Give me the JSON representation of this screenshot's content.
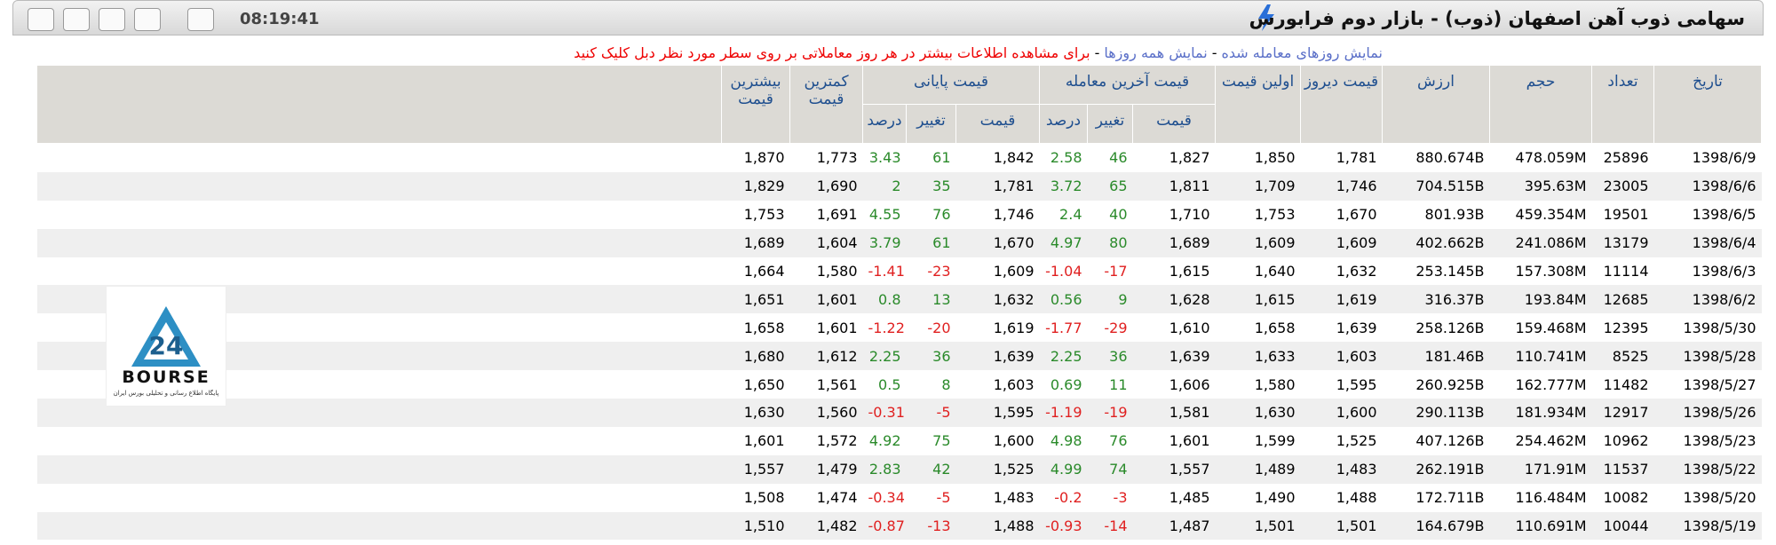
{
  "header": {
    "title": "سهامی ذوب آهن اصفهان (ذوب) - بازار دوم فرابورس",
    "time": "08:19:41"
  },
  "links": {
    "traded_days": "نمایش روزهای معامله شده",
    "separator": "-",
    "all_days": "نمایش همه روزها",
    "note": "برای مشاهده اطلاعات بیشتر در هر روز معاملاتی بر روی سطر مورد نظر دبل کلیک کنید"
  },
  "table": {
    "groups": {
      "last": "قیمت آخرین معامله",
      "close": "قیمت پایانی"
    },
    "headers": [
      "تاریخ",
      "تعداد",
      "حجم",
      "ارزش",
      "قیمت دیروز",
      "اولین قیمت",
      "قیمت",
      "تغییر",
      "درصد",
      "قیمت",
      "تغییر",
      "درصد",
      "کمترین قیمت",
      "بیشترین قیمت"
    ],
    "rows": [
      [
        "1398/6/9",
        "25896",
        "478.059M",
        "880.674B",
        "1,781",
        "1,850",
        "1,827",
        "46",
        "2.58",
        "1,842",
        "61",
        "3.43",
        "1,773",
        "1,870"
      ],
      [
        "1398/6/6",
        "23005",
        "395.63M",
        "704.515B",
        "1,746",
        "1,709",
        "1,811",
        "65",
        "3.72",
        "1,781",
        "35",
        "2",
        "1,690",
        "1,829"
      ],
      [
        "1398/6/5",
        "19501",
        "459.354M",
        "801.93B",
        "1,670",
        "1,753",
        "1,710",
        "40",
        "2.4",
        "1,746",
        "76",
        "4.55",
        "1,691",
        "1,753"
      ],
      [
        "1398/6/4",
        "13179",
        "241.086M",
        "402.662B",
        "1,609",
        "1,609",
        "1,689",
        "80",
        "4.97",
        "1,670",
        "61",
        "3.79",
        "1,604",
        "1,689"
      ],
      [
        "1398/6/3",
        "11114",
        "157.308M",
        "253.145B",
        "1,632",
        "1,640",
        "1,615",
        "-17",
        "-1.04",
        "1,609",
        "-23",
        "-1.41",
        "1,580",
        "1,664"
      ],
      [
        "1398/6/2",
        "12685",
        "193.84M",
        "316.37B",
        "1,619",
        "1,615",
        "1,628",
        "9",
        "0.56",
        "1,632",
        "13",
        "0.8",
        "1,601",
        "1,651"
      ],
      [
        "1398/5/30",
        "12395",
        "159.468M",
        "258.126B",
        "1,639",
        "1,658",
        "1,610",
        "-29",
        "-1.77",
        "1,619",
        "-20",
        "-1.22",
        "1,601",
        "1,658"
      ],
      [
        "1398/5/28",
        "8525",
        "110.741M",
        "181.46B",
        "1,603",
        "1,633",
        "1,639",
        "36",
        "2.25",
        "1,639",
        "36",
        "2.25",
        "1,612",
        "1,680"
      ],
      [
        "1398/5/27",
        "11482",
        "162.777M",
        "260.925B",
        "1,595",
        "1,580",
        "1,606",
        "11",
        "0.69",
        "1,603",
        "8",
        "0.5",
        "1,561",
        "1,650"
      ],
      [
        "1398/5/26",
        "12917",
        "181.934M",
        "290.113B",
        "1,600",
        "1,630",
        "1,581",
        "-19",
        "-1.19",
        "1,595",
        "-5",
        "-0.31",
        "1,560",
        "1,630"
      ],
      [
        "1398/5/23",
        "10962",
        "254.462M",
        "407.126B",
        "1,525",
        "1,599",
        "1,601",
        "76",
        "4.98",
        "1,600",
        "75",
        "4.92",
        "1,572",
        "1,601"
      ],
      [
        "1398/5/22",
        "11537",
        "171.91M",
        "262.191B",
        "1,483",
        "1,489",
        "1,557",
        "74",
        "4.99",
        "1,525",
        "42",
        "2.83",
        "1,479",
        "1,557"
      ],
      [
        "1398/5/20",
        "10082",
        "116.484M",
        "172.711B",
        "1,488",
        "1,490",
        "1,485",
        "-3",
        "-0.2",
        "1,483",
        "-5",
        "-0.34",
        "1,474",
        "1,508"
      ],
      [
        "1398/5/19",
        "10044",
        "110.691M",
        "164.679B",
        "1,501",
        "1,501",
        "1,487",
        "-14",
        "-0.93",
        "1,488",
        "-13",
        "-0.87",
        "1,482",
        "1,510"
      ]
    ]
  },
  "logo": {
    "name": "BOURSE",
    "number": "24",
    "tagline": "پایگاه اطلاع رسانی و تحلیلی بورس ایران"
  }
}
